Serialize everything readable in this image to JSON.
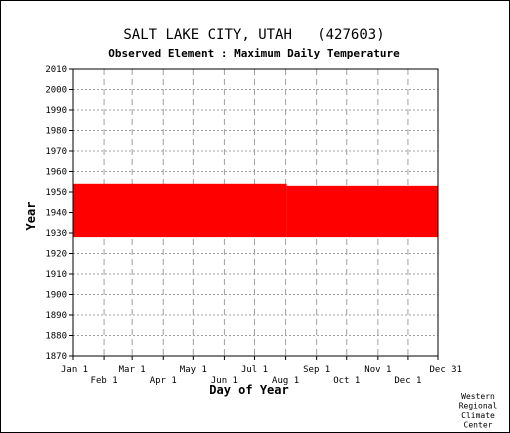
{
  "chart_data": {
    "type": "area",
    "title": "SALT LAKE CITY, UTAH   (427603)",
    "subtitle": "Observed Element : Maximum Daily Temperature",
    "xlabel": "Day of Year",
    "ylabel": "Year",
    "xlim": [
      1,
      365
    ],
    "ylim": [
      1870,
      2010
    ],
    "y_ticks": [
      1870,
      1880,
      1890,
      1900,
      1910,
      1920,
      1930,
      1940,
      1950,
      1960,
      1970,
      1980,
      1990,
      2000,
      2010
    ],
    "x_ticks": [
      {
        "label": "Jan 1",
        "day": 1,
        "row": 1
      },
      {
        "label": "Feb 1",
        "day": 32,
        "row": 2
      },
      {
        "label": "Mar 1",
        "day": 60,
        "row": 1
      },
      {
        "label": "Apr 1",
        "day": 91,
        "row": 2
      },
      {
        "label": "May 1",
        "day": 121,
        "row": 1
      },
      {
        "label": "Jun 1",
        "day": 152,
        "row": 2
      },
      {
        "label": "Jul 1",
        "day": 182,
        "row": 1
      },
      {
        "label": "Aug 1",
        "day": 213,
        "row": 2
      },
      {
        "label": "Sep 1",
        "day": 244,
        "row": 1
      },
      {
        "label": "Oct 1",
        "day": 274,
        "row": 2
      },
      {
        "label": "Nov 1",
        "day": 305,
        "row": 1
      },
      {
        "label": "Dec 1",
        "day": 335,
        "row": 2
      },
      {
        "label": "Dec 31",
        "day": 365,
        "row": 1
      }
    ],
    "series": [
      {
        "color": "#ff0000",
        "periods": [
          {
            "day_start": 1,
            "day_end": 214,
            "year_start": 1928,
            "year_end": 1954
          },
          {
            "day_start": 214,
            "day_end": 365,
            "year_start": 1928,
            "year_end": 1953
          }
        ]
      }
    ],
    "grid": true,
    "grid_style": "dashed",
    "credit": [
      "Western",
      "Regional",
      "Climate",
      "Center"
    ]
  }
}
